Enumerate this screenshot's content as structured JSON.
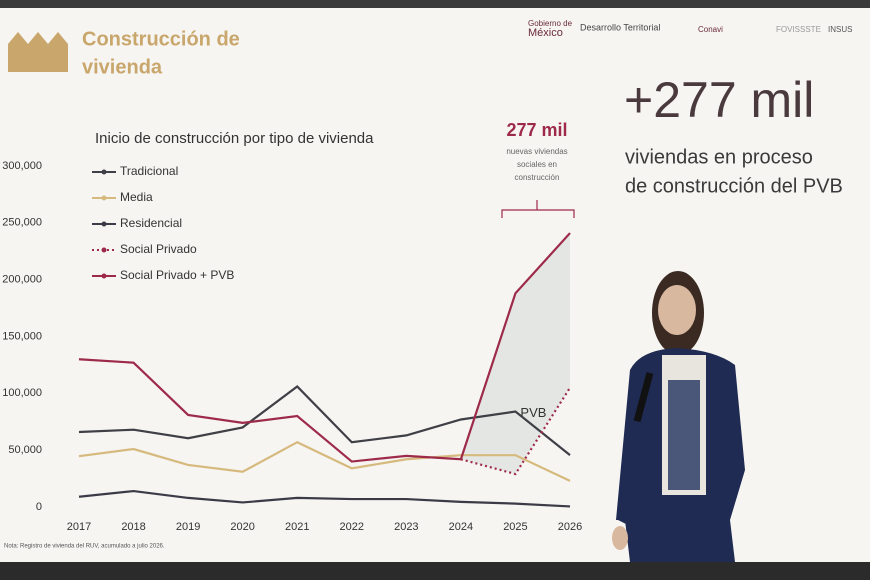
{
  "header": {
    "title": [
      "Construcción de",
      "vivienda"
    ],
    "logos": [
      "Gobierno de",
      "México",
      "Desarrollo Territorial",
      "Conavi",
      "FOVISSSTE",
      "INSUS"
    ]
  },
  "chart_data": {
    "type": "line",
    "title": "Inicio de construcción por tipo de vivienda",
    "categories": [
      "2017",
      "2018",
      "2019",
      "2020",
      "2021",
      "2022",
      "2023",
      "2024",
      "2025",
      "2026"
    ],
    "series": [
      {
        "name": "Tradicional",
        "color": "#3f3f46",
        "values": [
          66000,
          68000,
          60500,
          70000,
          106000,
          57000,
          63000,
          77000,
          84000,
          45600
        ]
      },
      {
        "name": "Media",
        "color": "#d6b97c",
        "values": [
          44700,
          51000,
          37000,
          31000,
          57000,
          34000,
          42000,
          45600,
          45600,
          23000
        ]
      },
      {
        "name": "Residencial",
        "color": "#3b3b48",
        "values": [
          9000,
          14000,
          8000,
          4000,
          8000,
          7000,
          7000,
          4500,
          3000,
          500
        ]
      },
      {
        "name": "Social Privado",
        "color": "#9e2a4a",
        "line_style": "dotted",
        "values": [
          null,
          null,
          null,
          null,
          null,
          null,
          null,
          42000,
          29000,
          105000
        ]
      },
      {
        "name": "Social Privado + PVB",
        "color": "#9e2a4a",
        "values": [
          130000,
          127000,
          81000,
          74000,
          80000,
          40000,
          45000,
          42000,
          188000,
          241000
        ]
      }
    ],
    "ylim": [
      0,
      300000
    ],
    "yticks": [
      0,
      {
        "value": 50000,
        "label": "50,000"
      },
      {
        "value": 100000,
        "label": "100,000"
      },
      {
        "value": 150000,
        "label": "150,000"
      },
      {
        "value": 200000,
        "label": "200,000"
      },
      {
        "value": 250000,
        "label": "250,000"
      },
      {
        "value": 300000,
        "label": "300,000"
      }
    ],
    "area_label": "PVB",
    "annotation": "277 mil",
    "annotation_note": [
      "nuevas viviendas",
      "sociales en",
      "construcción"
    ],
    "note": "Nota: Registro de vivienda del RUV, acumulado a julio 2026."
  },
  "side": {
    "headline": "+277 mil",
    "text": [
      "viviendas en proceso",
      "de construcción del PVB"
    ]
  }
}
